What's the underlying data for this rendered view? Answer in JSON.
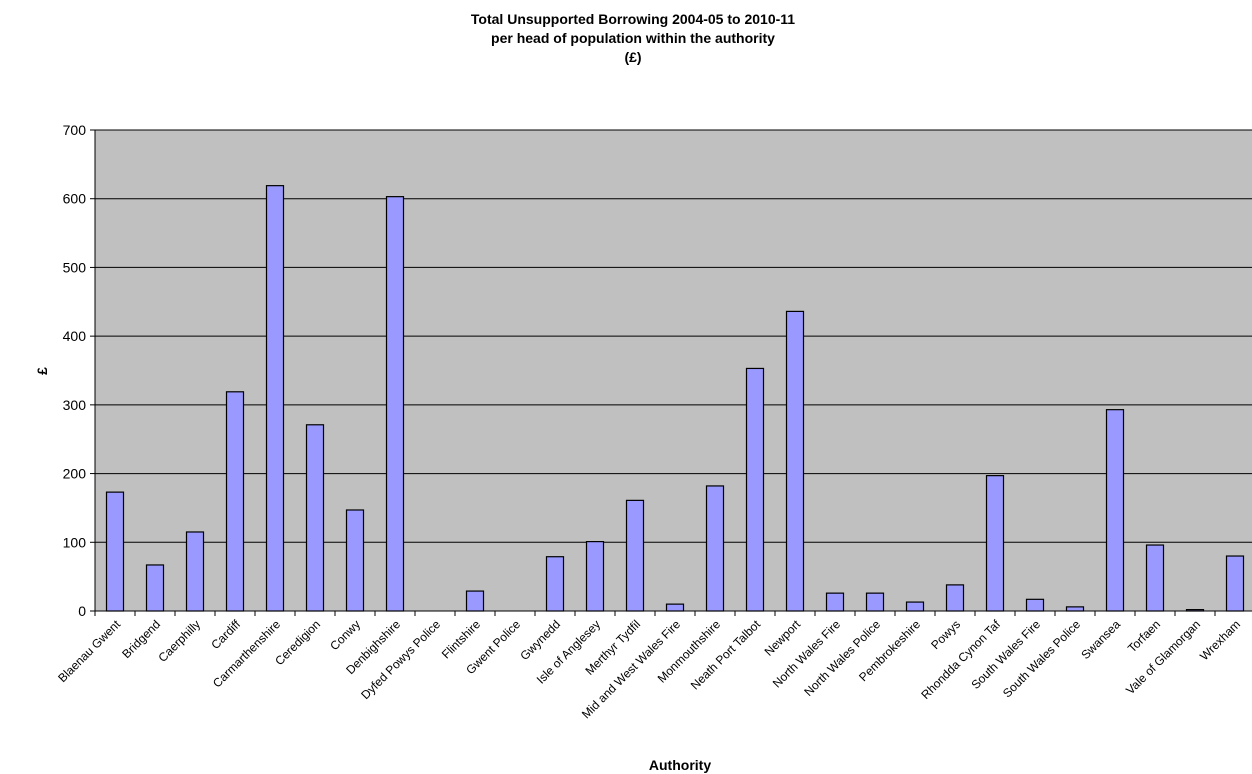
{
  "chart_data": {
    "type": "bar",
    "title_lines": [
      "Total Unsupported Borrowing 2004-05 to 2010-11",
      "per head of population within the authority",
      "(£)"
    ],
    "xlabel": "Authority",
    "ylabel": "£",
    "ylim": [
      0,
      700
    ],
    "yticks": [
      "0",
      "100",
      "200",
      "300",
      "400",
      "500",
      "600",
      "700"
    ],
    "grid": true,
    "legend": "none",
    "bar_color": "#9999FF",
    "plot_background": "#C0C0C0",
    "categories": [
      "Blaenau Gwent",
      "Bridgend",
      "Caerphilly",
      "Cardiff",
      "Carmarthenshire",
      "Ceredigion",
      "Conwy",
      "Denbighshire",
      "Dyfed Powys Police",
      "Flintshire",
      "Gwent Police",
      "Gwynedd",
      "Isle of Anglesey",
      "Merthyr Tydfil",
      "Mid and West Wales Fire",
      "Monmouthshire",
      "Neath Port Talbot",
      "Newport",
      "North Wales Fire",
      "North Wales Police",
      "Pembrokeshire",
      "Powys",
      "Rhondda Cynon Taf",
      "South Wales Fire",
      "South Wales Police",
      "Swansea",
      "Torfaen",
      "Vale of Glamorgan",
      "Wrexham"
    ],
    "values": [
      173,
      67,
      115,
      319,
      619,
      271,
      147,
      603,
      0,
      29,
      0,
      79,
      101,
      161,
      10,
      182,
      353,
      436,
      26,
      26,
      13,
      38,
      197,
      17,
      6,
      293,
      96,
      2,
      80
    ]
  }
}
